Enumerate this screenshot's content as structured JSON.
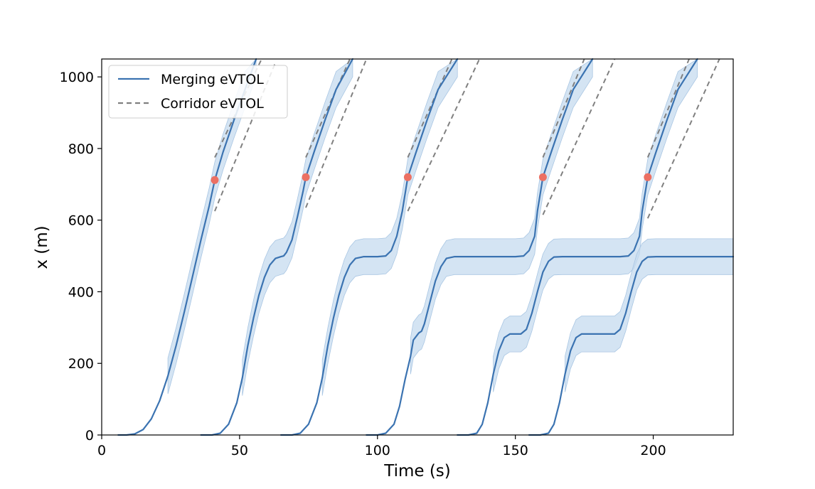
{
  "chart_data": {
    "type": "line",
    "title": "",
    "xlabel": "Time (s)",
    "ylabel": "x (m)",
    "xlim": [
      0,
      229
    ],
    "ylim": [
      0,
      1050
    ],
    "xticks": [
      0,
      50,
      100,
      150,
      200
    ],
    "yticks": [
      0,
      200,
      400,
      600,
      800,
      1000
    ],
    "legend": {
      "position": "top-left",
      "entries": [
        {
          "label": "Merging eVTOL",
          "style": "solid",
          "color": "#3b73b1"
        },
        {
          "label": "Corridor eVTOL",
          "style": "dashed",
          "color": "#808080"
        }
      ]
    },
    "colors": {
      "merging": "#3b73b1",
      "band": "#c6dbef",
      "corridor": "#808080",
      "merge_point": "#ec7063"
    },
    "band_half_width_m": 50,
    "series": [
      {
        "name": "Merging eVTOL 1",
        "points": [
          [
            6,
            0
          ],
          [
            9,
            0
          ],
          [
            12,
            3
          ],
          [
            15,
            15
          ],
          [
            18,
            45
          ],
          [
            21,
            95
          ],
          [
            24,
            165
          ],
          [
            27,
            250
          ],
          [
            30,
            345
          ],
          [
            33,
            445
          ],
          [
            36,
            545
          ],
          [
            39,
            640
          ],
          [
            41,
            712
          ],
          [
            44,
            790
          ],
          [
            48,
            880
          ],
          [
            52,
            965
          ],
          [
            56,
            1050
          ]
        ],
        "band_from_x": 23,
        "band_to_x": 64,
        "merge_point": [
          41,
          712
        ]
      },
      {
        "name": "Merging eVTOL 2",
        "points": [
          [
            36,
            0
          ],
          [
            40,
            0
          ],
          [
            43,
            5
          ],
          [
            46,
            30
          ],
          [
            49,
            90
          ],
          [
            51,
            160
          ],
          [
            53,
            250
          ],
          [
            55,
            325
          ],
          [
            57,
            390
          ],
          [
            59,
            440
          ],
          [
            61,
            475
          ],
          [
            63,
            493
          ],
          [
            65,
            498
          ],
          [
            66,
            500
          ],
          [
            67,
            510
          ],
          [
            69,
            545
          ],
          [
            71,
            610
          ],
          [
            73,
            680
          ],
          [
            74,
            720
          ],
          [
            77,
            790
          ],
          [
            81,
            880
          ],
          [
            85,
            965
          ],
          [
            91,
            1050
          ]
        ],
        "band_from_x": 50,
        "band_to_x": 91,
        "merge_point": [
          74,
          720
        ]
      },
      {
        "name": "Merging eVTOL 3",
        "points": [
          [
            65,
            0
          ],
          [
            69,
            0
          ],
          [
            72,
            5
          ],
          [
            75,
            30
          ],
          [
            78,
            90
          ],
          [
            80,
            160
          ],
          [
            82,
            250
          ],
          [
            84,
            325
          ],
          [
            86,
            390
          ],
          [
            88,
            440
          ],
          [
            90,
            475
          ],
          [
            92,
            493
          ],
          [
            95,
            498
          ],
          [
            100,
            498
          ],
          [
            103,
            500
          ],
          [
            105,
            515
          ],
          [
            107,
            555
          ],
          [
            109,
            625
          ],
          [
            111,
            720
          ],
          [
            114,
            790
          ],
          [
            118,
            880
          ],
          [
            122,
            965
          ],
          [
            129,
            1050
          ]
        ],
        "band_from_x": 80,
        "band_to_x": 129,
        "merge_point": [
          111,
          720
        ]
      },
      {
        "name": "Merging eVTOL 4",
        "points": [
          [
            96,
            0
          ],
          [
            100,
            0
          ],
          [
            103,
            5
          ],
          [
            106,
            30
          ],
          [
            108,
            80
          ],
          [
            110,
            155
          ],
          [
            112,
            220
          ],
          [
            113,
            265
          ],
          [
            115,
            285
          ],
          [
            116,
            290
          ],
          [
            117,
            310
          ],
          [
            119,
            370
          ],
          [
            121,
            430
          ],
          [
            123,
            470
          ],
          [
            125,
            493
          ],
          [
            128,
            498
          ],
          [
            150,
            498
          ],
          [
            153,
            500
          ],
          [
            155,
            515
          ],
          [
            157,
            555
          ],
          [
            158,
            625
          ],
          [
            160,
            720
          ],
          [
            163,
            790
          ],
          [
            167,
            880
          ],
          [
            171,
            965
          ],
          [
            178,
            1050
          ]
        ],
        "band_from_x": 111,
        "band_to_x": 178,
        "merge_point": [
          160,
          720
        ]
      },
      {
        "name": "Merging eVTOL 5",
        "points": [
          [
            129,
            0
          ],
          [
            133,
            0
          ],
          [
            136,
            5
          ],
          [
            138,
            30
          ],
          [
            140,
            90
          ],
          [
            142,
            170
          ],
          [
            144,
            235
          ],
          [
            146,
            272
          ],
          [
            148,
            282
          ],
          [
            152,
            282
          ],
          [
            154,
            295
          ],
          [
            156,
            340
          ],
          [
            158,
            400
          ],
          [
            160,
            455
          ],
          [
            162,
            485
          ],
          [
            164,
            497
          ],
          [
            167,
            498
          ],
          [
            188,
            498
          ],
          [
            191,
            500
          ],
          [
            193,
            515
          ],
          [
            195,
            555
          ],
          [
            196,
            625
          ],
          [
            198,
            720
          ],
          [
            201,
            790
          ],
          [
            205,
            880
          ],
          [
            209,
            965
          ],
          [
            216,
            1050
          ]
        ],
        "band_from_x": 142,
        "band_to_x": 216,
        "merge_point": [
          198,
          720
        ]
      },
      {
        "name": "Merging eVTOL 6",
        "points": [
          [
            155,
            0
          ],
          [
            159,
            0
          ],
          [
            162,
            5
          ],
          [
            164,
            30
          ],
          [
            166,
            90
          ],
          [
            168,
            170
          ],
          [
            170,
            235
          ],
          [
            172,
            272
          ],
          [
            174,
            282
          ],
          [
            186,
            282
          ],
          [
            188,
            295
          ],
          [
            190,
            340
          ],
          [
            192,
            400
          ],
          [
            194,
            455
          ],
          [
            196,
            485
          ],
          [
            198,
            497
          ],
          [
            201,
            498
          ],
          [
            229,
            498
          ]
        ],
        "band_from_x": 168,
        "band_to_x": 229,
        "merge_point": null
      }
    ],
    "corridor_lines": [
      {
        "points": [
          [
            41,
            775
          ],
          [
            58,
            1050
          ]
        ]
      },
      {
        "points": [
          [
            41,
            625
          ],
          [
            63,
            1040
          ]
        ]
      },
      {
        "points": [
          [
            74,
            775
          ],
          [
            90,
            1050
          ]
        ]
      },
      {
        "points": [
          [
            74,
            635
          ],
          [
            96,
            1050
          ]
        ]
      },
      {
        "points": [
          [
            111,
            775
          ],
          [
            127,
            1050
          ]
        ]
      },
      {
        "points": [
          [
            111,
            625
          ],
          [
            137,
            1050
          ]
        ]
      },
      {
        "points": [
          [
            160,
            775
          ],
          [
            175,
            1050
          ]
        ]
      },
      {
        "points": [
          [
            160,
            615
          ],
          [
            186,
            1050
          ]
        ]
      },
      {
        "points": [
          [
            198,
            775
          ],
          [
            213,
            1050
          ]
        ]
      },
      {
        "points": [
          [
            198,
            605
          ],
          [
            224,
            1050
          ]
        ]
      }
    ]
  }
}
